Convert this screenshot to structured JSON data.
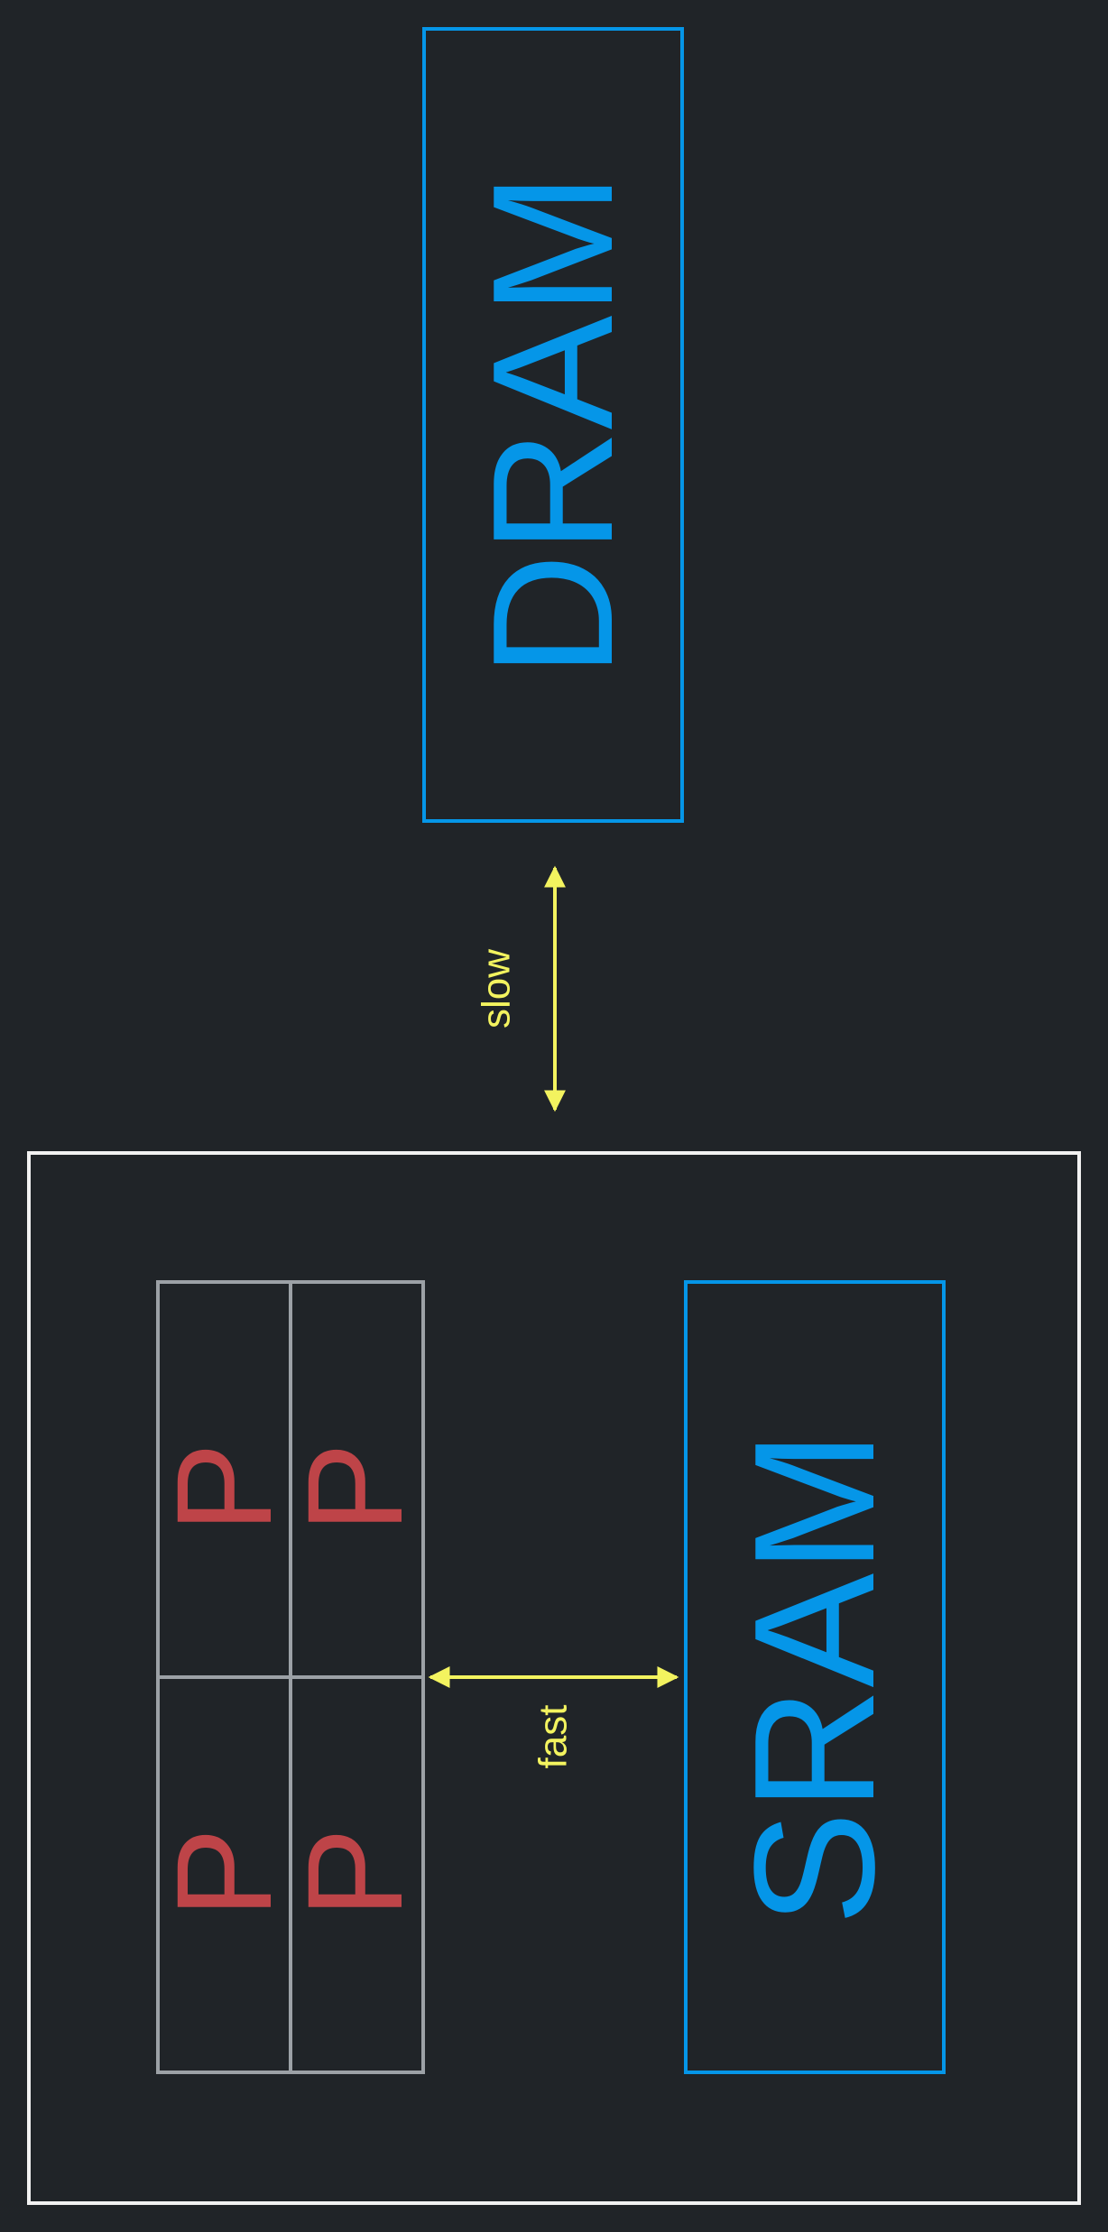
{
  "colors": {
    "background": "#202428",
    "memory": "#0596E8",
    "processor": "#BE4448",
    "arrow": "#F3F35F",
    "chip_border": "#F2F2F2",
    "grid_border": "#9CA1A6"
  },
  "dram": {
    "label": "DRAM"
  },
  "sram": {
    "label": "SRAM"
  },
  "processors": {
    "labels": [
      "P",
      "P",
      "P",
      "P"
    ]
  },
  "links": {
    "slow_label": "slow",
    "fast_label": "fast"
  }
}
